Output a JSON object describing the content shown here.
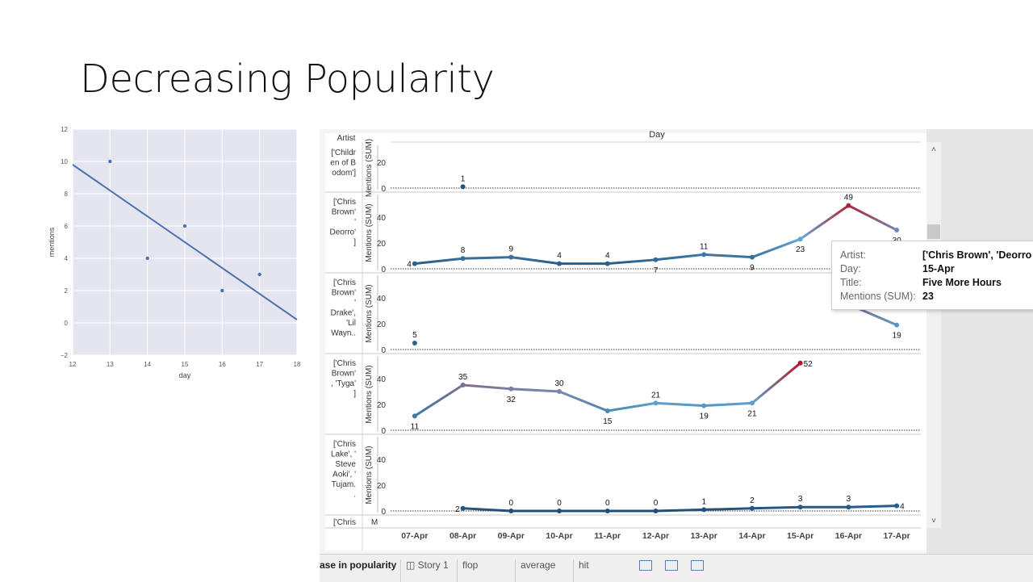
{
  "slide": {
    "title": "Decreasing Popularity"
  },
  "chart_data": [
    {
      "type": "scatter",
      "title": "",
      "xlabel": "day",
      "ylabel": "mentions",
      "xlim": [
        12,
        18
      ],
      "ylim": [
        -2,
        12
      ],
      "x_ticks": [
        "12",
        "13",
        "14",
        "15",
        "16",
        "17",
        "18"
      ],
      "y_ticks": [
        "12",
        "10",
        "8",
        "6",
        "4",
        "2",
        "0",
        "−2"
      ],
      "grid": true,
      "points": [
        {
          "x": 13,
          "y": 10
        },
        {
          "x": 14,
          "y": 4
        },
        {
          "x": 15,
          "y": 6
        },
        {
          "x": 16,
          "y": 2
        },
        {
          "x": 17,
          "y": 3
        }
      ],
      "regression_line": {
        "x": [
          12,
          18
        ],
        "y": [
          9.8,
          0.2
        ]
      },
      "colors": {
        "background": "#e5e5f0",
        "point": "#4c72b0",
        "line": "#4c72b0"
      }
    },
    {
      "type": "line",
      "header": "Day",
      "artist_header": "Artist",
      "y_axis_title": "Mentions (SUM)",
      "categories": [
        "07-Apr",
        "08-Apr",
        "09-Apr",
        "10-Apr",
        "11-Apr",
        "12-Apr",
        "13-Apr",
        "14-Apr",
        "15-Apr",
        "16-Apr",
        "17-Apr"
      ],
      "panes": [
        {
          "artist": [
            "['Childr",
            "en of B",
            "odom']"
          ],
          "yticks": [
            "20",
            "0"
          ],
          "ylim": [
            0,
            30
          ],
          "values": [
            null,
            1,
            null,
            null,
            null,
            null,
            null,
            null,
            null,
            null,
            null
          ],
          "labels": [
            null,
            "1",
            null,
            null,
            null,
            null,
            null,
            null,
            null,
            null,
            null
          ],
          "label_pos": [
            null,
            "above",
            null,
            null,
            null,
            null,
            null,
            null,
            null,
            null,
            null
          ]
        },
        {
          "artist": [
            "['Chris",
            "Brown'",
            "'",
            "Deorro'",
            "]"
          ],
          "yticks": [
            "40",
            "20",
            "0"
          ],
          "ylim": [
            0,
            60
          ],
          "values": [
            4,
            8,
            9,
            4,
            4,
            7,
            11,
            9,
            23,
            49,
            30
          ],
          "labels": [
            "4",
            "8",
            "9",
            "4",
            "4",
            "7",
            "11",
            "9",
            "23",
            "49",
            "30"
          ],
          "label_pos": [
            "left",
            "above",
            "above",
            "above",
            "above",
            "below",
            "above",
            "below",
            "below",
            "above",
            "below"
          ]
        },
        {
          "artist": [
            "['Chris",
            "Brown'",
            "'",
            "Drake',",
            "'Lil",
            "Wayn.."
          ],
          "yticks": [
            "40",
            "20",
            "0"
          ],
          "ylim": [
            0,
            60
          ],
          "values": [
            5,
            null,
            null,
            null,
            null,
            null,
            null,
            null,
            null,
            35,
            19
          ],
          "labels": [
            "5",
            null,
            null,
            null,
            null,
            null,
            null,
            null,
            null,
            null,
            "19"
          ],
          "label_pos": [
            "above",
            null,
            null,
            null,
            null,
            null,
            null,
            null,
            null,
            null,
            "below"
          ]
        },
        {
          "artist": [
            "['Chris",
            "Brown'",
            ", 'Tyga'",
            "]"
          ],
          "yticks": [
            "40",
            "20",
            "0"
          ],
          "ylim": [
            0,
            60
          ],
          "values": [
            11,
            35,
            32,
            30,
            15,
            21,
            19,
            21,
            52,
            null,
            null
          ],
          "labels": [
            "11",
            "35",
            "32",
            "30",
            "15",
            "21",
            "19",
            "21",
            "52",
            null,
            null
          ],
          "label_pos": [
            "below",
            "above",
            "below",
            "above",
            "below",
            "above",
            "below",
            "below",
            "right",
            null,
            null
          ]
        },
        {
          "artist": [
            "['Chris",
            "Lake', '",
            "Steve",
            "Aoki', '",
            "Tujam.",
            "."
          ],
          "yticks": [
            "40",
            "20",
            "0"
          ],
          "ylim": [
            0,
            60
          ],
          "values": [
            null,
            2,
            0,
            0,
            0,
            0,
            1,
            2,
            3,
            3,
            4
          ],
          "labels": [
            null,
            "2",
            "0",
            "0",
            "0",
            "0",
            "1",
            "2",
            "3",
            "3",
            "4"
          ],
          "label_pos": [
            null,
            "left",
            "above",
            "above",
            "above",
            "above",
            "above",
            "above",
            "above",
            "above",
            "right"
          ]
        }
      ],
      "partial_pane_label": "['Chris",
      "partial_axis_char": "M",
      "color_scale": {
        "low": "#1f4e79",
        "mid": "#63a9d4",
        "high": "#b2182b",
        "min": 0,
        "max": 52
      }
    }
  ],
  "tooltip": {
    "rows": [
      {
        "key": "Artist:",
        "value": "['Chris Brown', 'Deorro"
      },
      {
        "key": "Day:",
        "value": "15-Apr"
      },
      {
        "key": "Title:",
        "value": "Five More Hours"
      },
      {
        "key": "Mentions (SUM):",
        "value": "23"
      }
    ]
  },
  "bottom_tabs": [
    "ase in popularity",
    "Story 1",
    "flop",
    "average",
    "hit"
  ]
}
